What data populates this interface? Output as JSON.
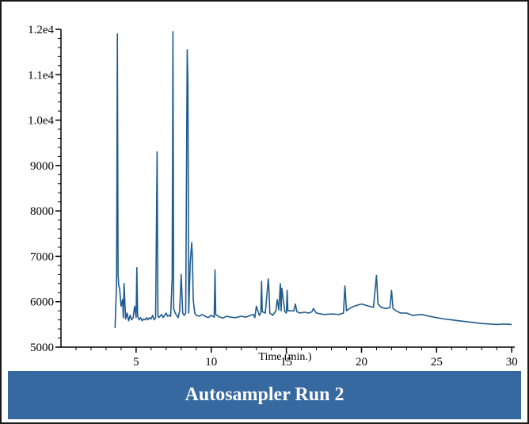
{
  "footer": {
    "title": "Autosampler Run 2"
  },
  "colors": {
    "trace": "#1f5b8e",
    "banner": "#3669a0",
    "axis": "#000000"
  },
  "chart_data": {
    "type": "line",
    "title": "",
    "xlabel": "Time (min.)",
    "ylabel": "",
    "xlim": [
      0,
      30.2
    ],
    "ylim": [
      5000,
      12000
    ],
    "x_ticks": [
      {
        "value": 5,
        "label": "5"
      },
      {
        "value": 10,
        "label": "10"
      },
      {
        "value": 15,
        "label": "15"
      },
      {
        "value": 20,
        "label": "20"
      },
      {
        "value": 25,
        "label": "25"
      },
      {
        "value": 30,
        "label": "30"
      }
    ],
    "y_ticks": [
      {
        "value": 5000,
        "label": "5000"
      },
      {
        "value": 6000,
        "label": "6000"
      },
      {
        "value": 7000,
        "label": "7000"
      },
      {
        "value": 8000,
        "label": "8000"
      },
      {
        "value": 9000,
        "label": "9000"
      },
      {
        "value": 10000,
        "label": "1.0e4"
      },
      {
        "value": 11000,
        "label": "1.1e4"
      },
      {
        "value": 12000,
        "label": "1.2e4"
      }
    ],
    "grid": false,
    "series": [
      {
        "x": [
          3.6,
          3.7,
          3.75,
          3.8,
          3.85,
          3.9,
          4.0,
          4.1,
          4.15,
          4.2,
          4.3,
          4.4,
          4.5,
          4.6,
          4.7,
          4.8,
          4.9,
          5.0,
          5.05,
          5.1,
          5.2,
          5.3,
          5.4,
          5.5,
          5.6,
          5.7,
          5.8,
          5.9,
          6.0,
          6.1,
          6.2,
          6.3,
          6.4,
          6.45,
          6.5,
          6.6,
          6.7,
          6.8,
          6.9,
          7.0,
          7.1,
          7.2,
          7.3,
          7.4,
          7.45,
          7.5,
          7.6,
          7.7,
          7.8,
          7.9,
          8.0,
          8.1,
          8.2,
          8.3,
          8.4,
          8.45,
          8.5,
          8.6,
          8.7,
          8.75,
          8.8,
          8.9,
          9.0,
          9.2,
          9.4,
          9.6,
          9.8,
          10.0,
          10.2,
          10.25,
          10.3,
          10.5,
          10.8,
          11.0,
          11.3,
          11.6,
          12.0,
          12.3,
          12.6,
          12.8,
          12.9,
          13.0,
          13.2,
          13.3,
          13.35,
          13.4,
          13.6,
          13.8,
          13.85,
          13.9,
          14.1,
          14.3,
          14.4,
          14.5,
          14.6,
          14.65,
          14.7,
          14.9,
          15.0,
          15.05,
          15.1,
          15.3,
          15.5,
          15.6,
          15.7,
          15.9,
          16.2,
          16.5,
          16.7,
          16.8,
          17.0,
          17.5,
          18.0,
          18.5,
          18.8,
          18.9,
          19.0,
          19.2,
          19.5,
          20.0,
          20.5,
          20.8,
          21.0,
          21.1,
          21.3,
          21.6,
          21.9,
          22.0,
          22.1,
          22.3,
          22.6,
          23.0,
          23.4,
          24.0,
          24.5,
          25.0,
          25.5,
          26.0,
          26.5,
          27.0,
          27.5,
          28.0,
          29.0,
          29.5,
          30.0
        ],
        "y": [
          5420,
          6400,
          11900,
          6600,
          6350,
          6300,
          5900,
          6050,
          5650,
          6400,
          5620,
          5750,
          5580,
          5700,
          5600,
          5650,
          5900,
          5650,
          6750,
          5680,
          5600,
          5650,
          5580,
          5620,
          5600,
          5650,
          5600,
          5650,
          5620,
          5700,
          5600,
          5650,
          9300,
          5700,
          5650,
          5680,
          5720,
          5650,
          5700,
          5750,
          5680,
          5700,
          5680,
          6500,
          11950,
          5850,
          5750,
          5700,
          5650,
          5800,
          6600,
          5750,
          5700,
          5750,
          11550,
          10800,
          5750,
          6850,
          7300,
          6950,
          6050,
          5750,
          5700,
          5680,
          5720,
          5680,
          5650,
          5700,
          5660,
          6700,
          5720,
          5670,
          5640,
          5680,
          5660,
          5650,
          5680,
          5660,
          5700,
          5720,
          5650,
          5900,
          5700,
          5750,
          6450,
          5780,
          5750,
          6500,
          6200,
          5750,
          5700,
          5800,
          6050,
          5820,
          6400,
          5800,
          6300,
          5780,
          5750,
          6250,
          5800,
          5800,
          5800,
          5950,
          5780,
          5750,
          5770,
          5750,
          5780,
          5850,
          5750,
          5720,
          5730,
          5720,
          5750,
          6350,
          5800,
          5850,
          5900,
          5950,
          5900,
          5880,
          6580,
          5950,
          5880,
          5850,
          5870,
          6250,
          5850,
          5800,
          5750,
          5750,
          5700,
          5720,
          5680,
          5650,
          5620,
          5600,
          5580,
          5560,
          5540,
          5520,
          5500,
          5510,
          5500
        ]
      }
    ]
  }
}
